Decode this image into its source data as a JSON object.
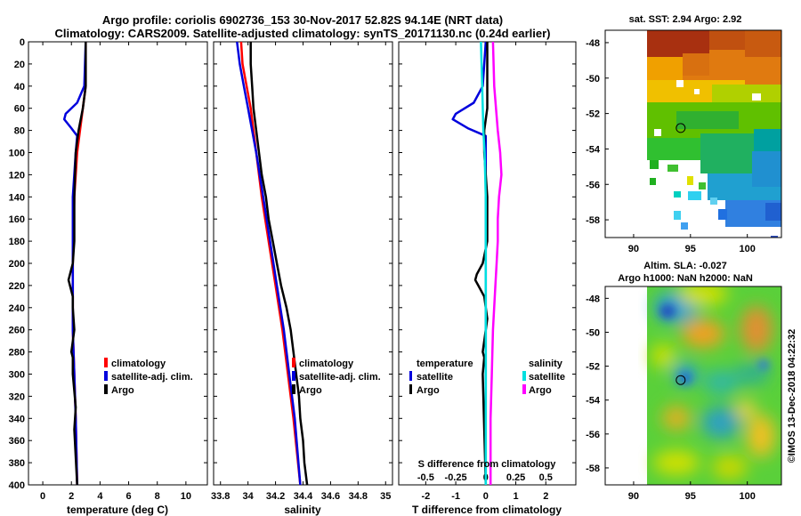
{
  "title": {
    "line1": "Argo profile: coriolis 6902736_153 30-Nov-2017 52.82S 94.14E (NRT data)",
    "line2": "Climatology: CARS2009. Satellite-adjusted climatology: synTS_20171130.nc (0.24d earlier)"
  },
  "watermark": "©IMOS 13-Dec-2018 04:22:32",
  "colors": {
    "climatology": "#ff0000",
    "satellite": "#0000dd",
    "argo": "#000000",
    "sat_salinity": "#00e0e0",
    "clim_salinity": "#ff00ff"
  },
  "chart_data": [
    {
      "type": "line",
      "name": "temperature-panel",
      "xlabel": "temperature (deg C)",
      "ylabel": "",
      "xlim": [
        -1,
        11.5
      ],
      "ylim": [
        400,
        0
      ],
      "xticks": [
        "0",
        "2",
        "4",
        "6",
        "8",
        "10"
      ],
      "xtick_values": [
        0,
        2,
        4,
        6,
        8,
        10
      ],
      "yticks": [
        "0",
        "20",
        "40",
        "60",
        "80",
        "100",
        "120",
        "140",
        "160",
        "180",
        "200",
        "220",
        "240",
        "260",
        "280",
        "300",
        "320",
        "340",
        "360",
        "380",
        "400"
      ],
      "ytick_values": [
        0,
        20,
        40,
        60,
        80,
        100,
        120,
        140,
        160,
        180,
        200,
        220,
        240,
        260,
        280,
        300,
        320,
        340,
        360,
        380,
        400
      ],
      "legend": [
        "climatology",
        "satellite-adj. clim.",
        "Argo"
      ],
      "series": [
        {
          "name": "climatology",
          "color": "#ff0000",
          "depth": [
            0,
            40,
            60,
            80,
            100,
            140,
            200,
            260,
            300,
            340,
            400
          ],
          "values": [
            3.0,
            3.0,
            2.8,
            2.6,
            2.4,
            2.2,
            2.1,
            2.1,
            2.2,
            2.3,
            2.4
          ]
        },
        {
          "name": "satellite-adj. clim.",
          "color": "#0000dd",
          "depth": [
            0,
            40,
            55,
            65,
            70,
            78,
            85,
            100,
            140,
            200,
            260,
            300,
            340,
            400
          ],
          "values": [
            3.0,
            2.9,
            2.4,
            1.6,
            1.5,
            2.0,
            2.4,
            2.3,
            2.1,
            2.1,
            2.1,
            2.2,
            2.3,
            2.4
          ]
        },
        {
          "name": "Argo",
          "color": "#000000",
          "depth": [
            0,
            40,
            60,
            80,
            100,
            140,
            180,
            200,
            210,
            215,
            220,
            230,
            240,
            260,
            280,
            285,
            300,
            330,
            350,
            400
          ],
          "values": [
            3.0,
            3.0,
            2.8,
            2.5,
            2.3,
            2.2,
            2.2,
            2.1,
            1.9,
            1.8,
            1.9,
            2.1,
            2.1,
            2.2,
            2.0,
            2.1,
            2.1,
            2.3,
            2.2,
            2.4
          ]
        }
      ]
    },
    {
      "type": "line",
      "name": "salinity-panel",
      "xlabel": "salinity",
      "ylabel": "",
      "xlim": [
        33.75,
        35.05
      ],
      "ylim": [
        400,
        0
      ],
      "xticks": [
        "33.8",
        "34",
        "34.2",
        "34.4",
        "34.6",
        "34.8",
        "35"
      ],
      "xtick_values": [
        33.8,
        34.0,
        34.2,
        34.4,
        34.6,
        34.8,
        35.0
      ],
      "legend": [
        "climatology",
        "satellite-adj. clim.",
        "Argo"
      ],
      "series": [
        {
          "name": "climatology",
          "color": "#ff0000",
          "depth": [
            0,
            20,
            40,
            60,
            80,
            100,
            140,
            180,
            220,
            260,
            300,
            340,
            400
          ],
          "values": [
            33.95,
            33.96,
            33.99,
            34.02,
            34.04,
            34.06,
            34.1,
            34.15,
            34.2,
            34.25,
            34.29,
            34.33,
            34.38
          ]
        },
        {
          "name": "satellite-adj. clim.",
          "color": "#0000dd",
          "depth": [
            0,
            20,
            40,
            60,
            80,
            100,
            140,
            180,
            220,
            260,
            300,
            340,
            400
          ],
          "values": [
            33.92,
            33.94,
            33.97,
            34.0,
            34.03,
            34.06,
            34.11,
            34.16,
            34.21,
            34.26,
            34.3,
            34.34,
            34.38
          ]
        },
        {
          "name": "Argo",
          "color": "#000000",
          "depth": [
            0,
            20,
            40,
            60,
            80,
            100,
            120,
            140,
            160,
            180,
            200,
            220,
            240,
            260,
            280,
            300,
            320,
            340,
            360,
            380,
            400
          ],
          "values": [
            34.02,
            34.02,
            34.03,
            34.04,
            34.06,
            34.08,
            34.1,
            34.13,
            34.15,
            34.18,
            34.21,
            34.24,
            34.28,
            34.31,
            34.33,
            34.35,
            34.37,
            34.38,
            34.4,
            34.41,
            34.43
          ]
        }
      ]
    },
    {
      "type": "line",
      "name": "difference-panel",
      "xlabel": "T difference from climatology",
      "top_label": "S difference from climatology",
      "xlim": [
        -2.9,
        3.0
      ],
      "ylim": [
        400,
        0
      ],
      "xticks": [
        "-2",
        "-1",
        "0",
        "1",
        "2"
      ],
      "xtick_values": [
        -2,
        -1,
        0,
        1,
        2
      ],
      "s_ticks": [
        "-0.5",
        "-0.25",
        "0",
        "0.25",
        "0.5"
      ],
      "s_tick_values": [
        -0.5,
        -0.25,
        0,
        0.25,
        0.5
      ],
      "legend_temperature": {
        "title": "temperature",
        "items": [
          "satellite",
          "Argo"
        ]
      },
      "legend_salinity": {
        "title": "salinity",
        "items": [
          "satellite",
          "Argo"
        ]
      },
      "series": [
        {
          "name": "T satellite",
          "color": "#0000dd",
          "depth": [
            0,
            40,
            55,
            65,
            70,
            78,
            85,
            100,
            200,
            400
          ],
          "values": [
            0,
            -0.1,
            -0.4,
            -1.0,
            -1.1,
            -0.6,
            0,
            0,
            0,
            0
          ]
        },
        {
          "name": "T Argo",
          "color": "#000000",
          "depth": [
            0,
            60,
            80,
            100,
            140,
            180,
            200,
            210,
            215,
            220,
            230,
            250,
            280,
            285,
            300,
            400
          ],
          "values": [
            0.05,
            0.05,
            -0.05,
            -0.05,
            0.05,
            0.05,
            -0.1,
            -0.3,
            -0.35,
            -0.25,
            -0.05,
            0.05,
            -0.1,
            -0.05,
            -0.1,
            0
          ]
        },
        {
          "name": "S satellite",
          "color": "#00e0e0",
          "depth": [
            0,
            40,
            80,
            100,
            140,
            200,
            260,
            300,
            340,
            400
          ],
          "values": [
            -0.04,
            -0.03,
            -0.02,
            -0.01,
            0,
            0,
            0,
            0,
            0,
            0
          ]
        },
        {
          "name": "S Argo",
          "color": "#ff00ff",
          "depth": [
            0,
            40,
            80,
            100,
            120,
            140,
            160,
            180,
            200,
            220,
            260,
            300,
            340,
            400
          ],
          "values": [
            0.06,
            0.07,
            0.1,
            0.12,
            0.13,
            0.11,
            0.1,
            0.1,
            0.09,
            0.08,
            0.06,
            0.05,
            0.04,
            0.04
          ]
        }
      ]
    },
    {
      "type": "heatmap",
      "name": "sst-map",
      "title": "sat. SST: 2.94 Argo: 2.92",
      "xlim": [
        87.5,
        103
      ],
      "ylim": [
        -59,
        -47.3
      ],
      "xticks": [
        "90",
        "95",
        "100"
      ],
      "xtick_values": [
        90,
        95,
        100
      ],
      "yticks": [
        "-48",
        "-50",
        "-52",
        "-54",
        "-56",
        "-58"
      ],
      "ytick_values": [
        -48,
        -50,
        -52,
        -54,
        -56,
        -58
      ],
      "argo_position": {
        "lon": 94.14,
        "lat": -52.82
      }
    },
    {
      "type": "heatmap",
      "name": "sla-map",
      "title_line1": "Altim. SLA: -0.027",
      "title_line2": "Argo h1000: NaN h2000: NaN",
      "xlim": [
        87.5,
        103
      ],
      "ylim": [
        -59,
        -47.3
      ],
      "xticks": [
        "90",
        "95",
        "100"
      ],
      "xtick_values": [
        90,
        95,
        100
      ],
      "yticks": [
        "-48",
        "-50",
        "-52",
        "-54",
        "-56",
        "-58"
      ],
      "ytick_values": [
        -48,
        -50,
        -52,
        -54,
        -56,
        -58
      ],
      "argo_position": {
        "lon": 94.14,
        "lat": -52.82
      }
    }
  ]
}
